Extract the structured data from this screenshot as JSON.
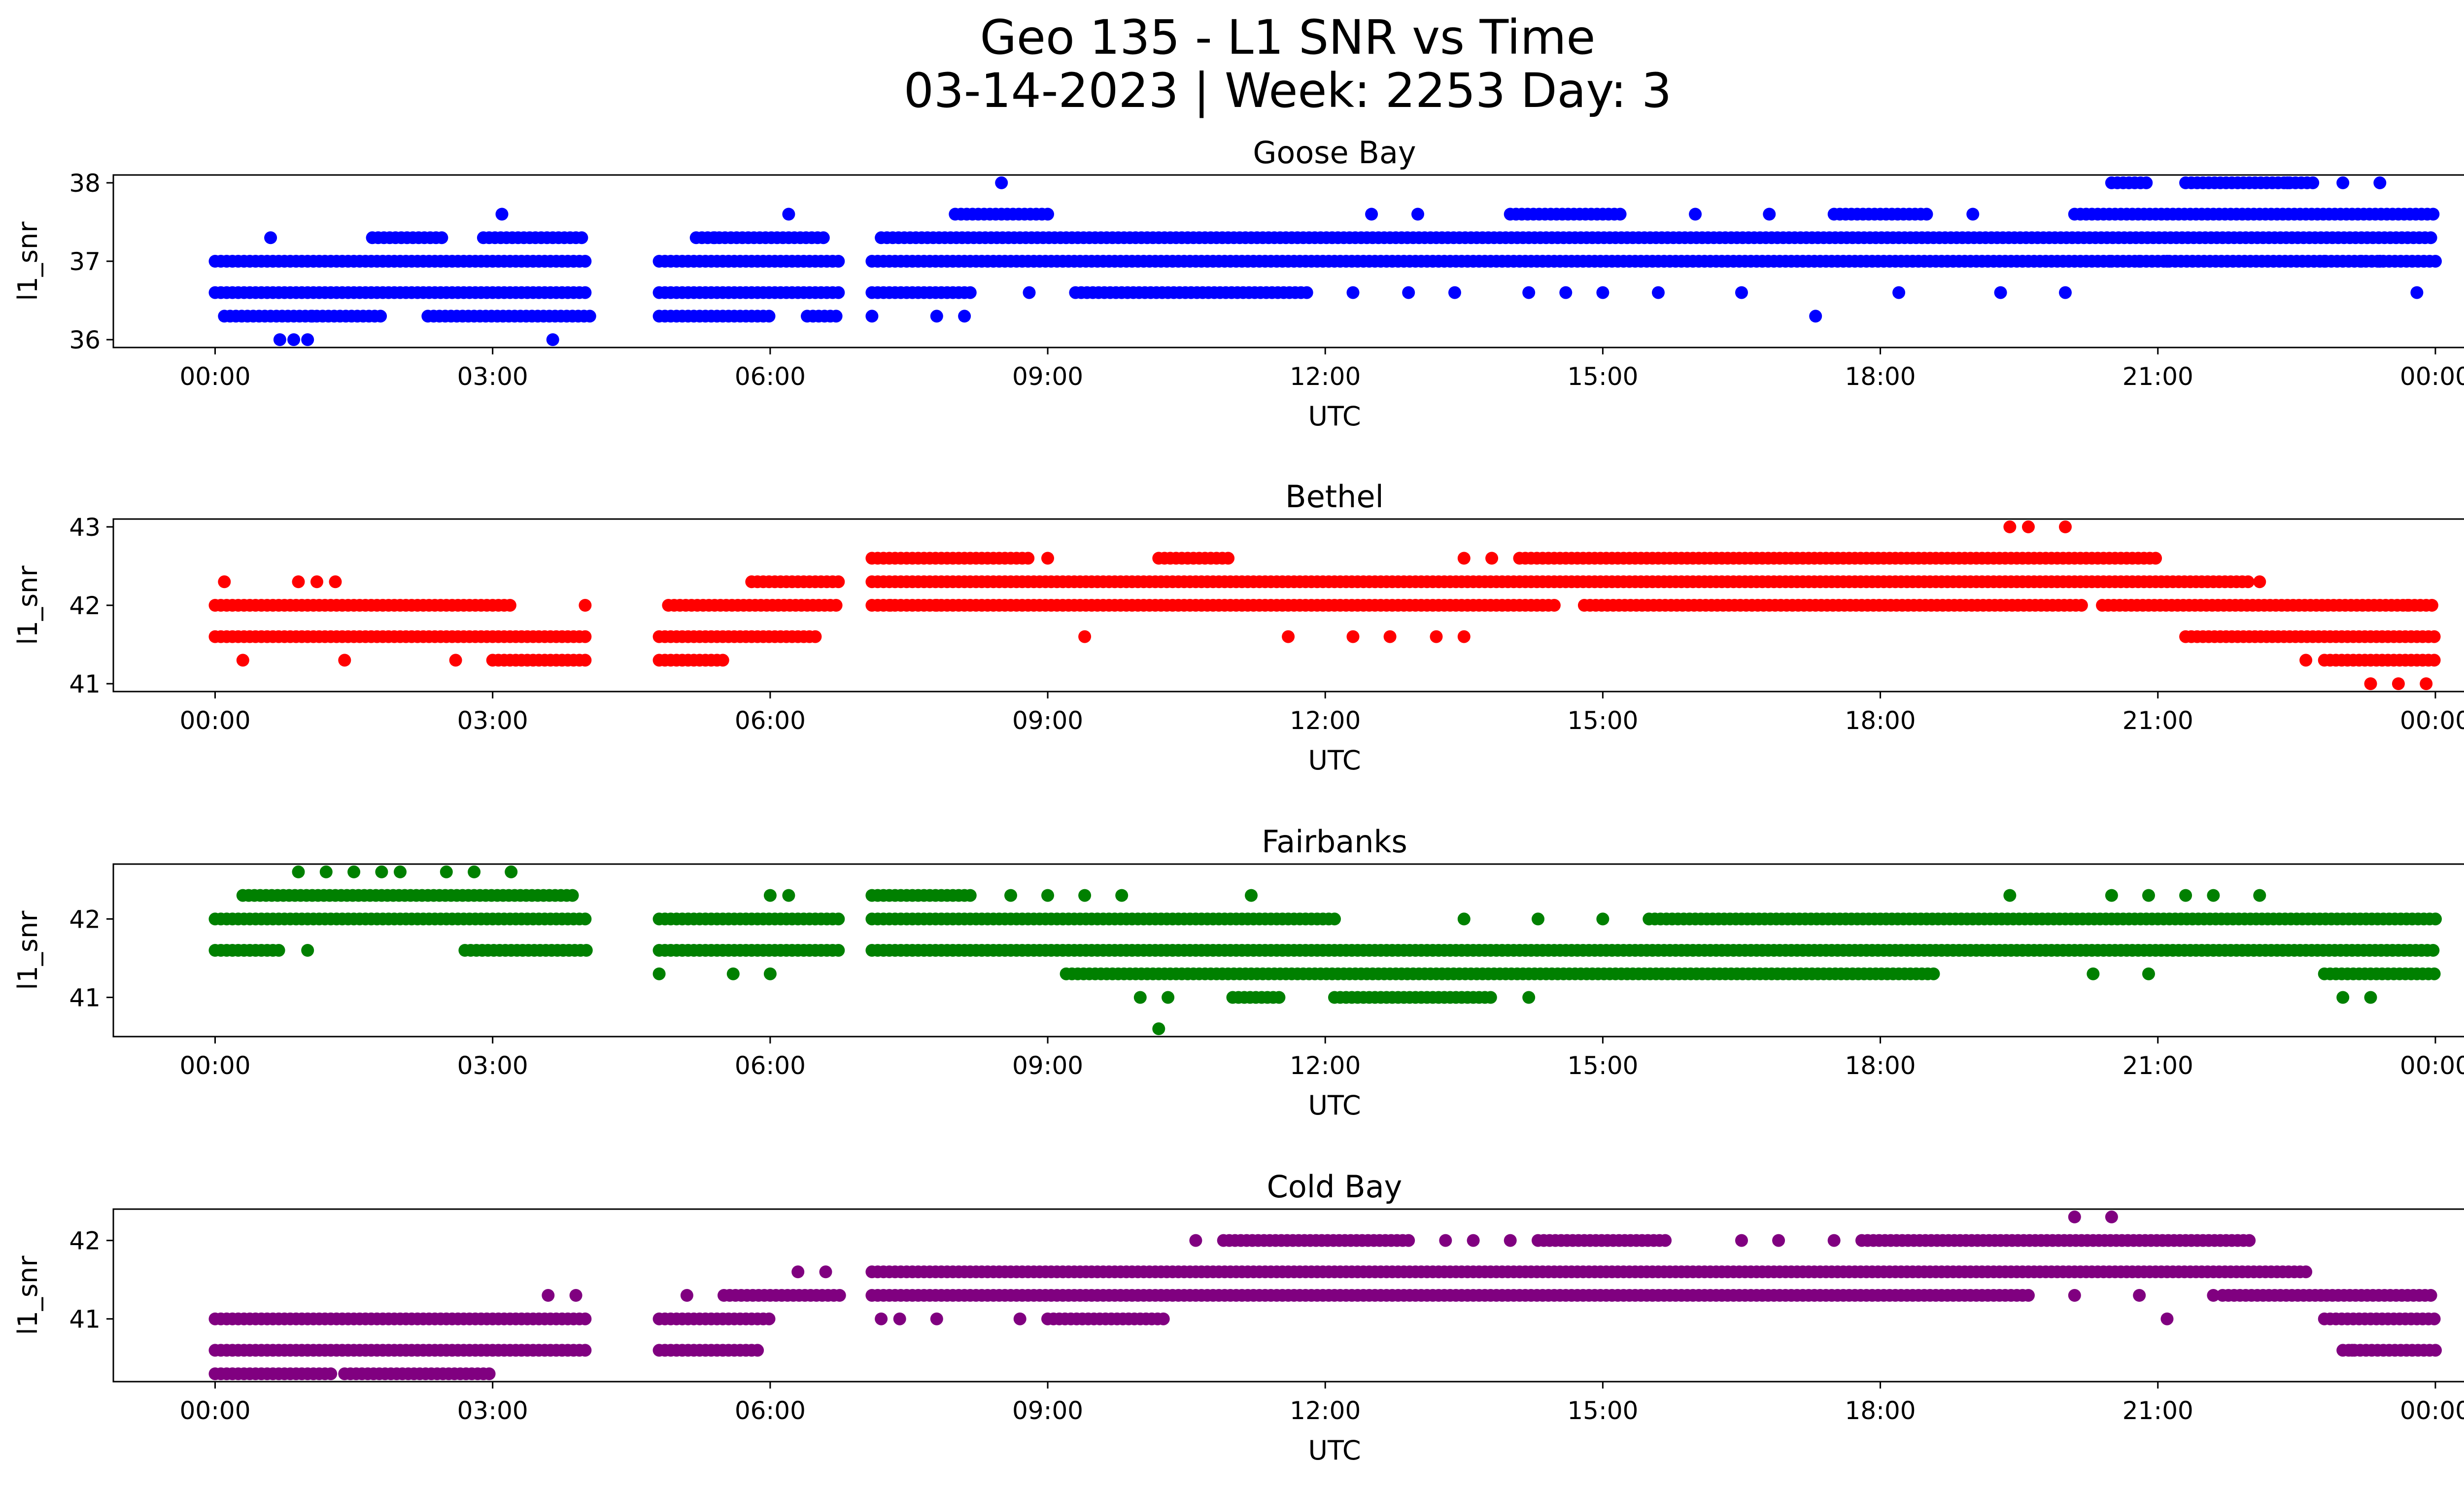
{
  "title_line1": "Geo 135 - L1 SNR vs Time",
  "title_line2": "03-14-2023 | Week: 2253 Day: 3",
  "chart_data": [
    {
      "type": "scatter",
      "title": "Goose Bay",
      "xlabel": "UTC",
      "ylabel": "l1_snr",
      "color": "#0000ff",
      "xlim": [
        -1.1,
        25.3
      ],
      "ylim": [
        35.9,
        38.1
      ],
      "yticks": [
        36,
        37,
        38
      ],
      "xticks": [
        0,
        3,
        6,
        9,
        12,
        15,
        18,
        21,
        24
      ],
      "xtick_labels": [
        "00:00",
        "03:00",
        "06:00",
        "09:00",
        "12:00",
        "15:00",
        "18:00",
        "21:00",
        "00:00"
      ],
      "bands": [
        {
          "y": 37.0,
          "ranges": [
            [
              0.0,
              4.05
            ],
            [
              4.8,
              6.75
            ],
            [
              7.1,
              20.5
            ],
            [
              20.5,
              24.0
            ]
          ]
        },
        {
          "y": 36.6,
          "ranges": [
            [
              0.0,
              4.05
            ],
            [
              4.8,
              6.75
            ],
            [
              7.1,
              8.2
            ],
            [
              9.3,
              11.8
            ]
          ]
        },
        {
          "y": 36.3,
          "ranges": [
            [
              0.1,
              1.8
            ],
            [
              2.3,
              4.05
            ],
            [
              4.8,
              6.0
            ],
            [
              6.4,
              6.75
            ]
          ]
        },
        {
          "y": 37.3,
          "ranges": [
            [
              1.7,
              2.5
            ],
            [
              2.9,
              4.0
            ],
            [
              5.2,
              6.6
            ],
            [
              7.2,
              24.0
            ]
          ]
        },
        {
          "y": 37.6,
          "ranges": [
            [
              8.0,
              9.0
            ],
            [
              14.0,
              15.2
            ],
            [
              17.5,
              18.5
            ],
            [
              20.1,
              24.0
            ]
          ]
        },
        {
          "y": 38.0,
          "ranges": [
            [
              20.5,
              20.9
            ],
            [
              21.3,
              22.7
            ]
          ]
        }
      ],
      "points": [
        {
          "x": 0.6,
          "y": 37.3
        },
        {
          "x": 0.7,
          "y": 36.0
        },
        {
          "x": 0.85,
          "y": 36.0
        },
        {
          "x": 1.0,
          "y": 36.0
        },
        {
          "x": 1.05,
          "y": 36.3
        },
        {
          "x": 3.1,
          "y": 37.6
        },
        {
          "x": 3.65,
          "y": 36.0
        },
        {
          "x": 5.4,
          "y": 37.3
        },
        {
          "x": 6.2,
          "y": 37.6
        },
        {
          "x": 7.1,
          "y": 36.3
        },
        {
          "x": 7.8,
          "y": 36.3
        },
        {
          "x": 8.1,
          "y": 36.3
        },
        {
          "x": 8.5,
          "y": 38.0
        },
        {
          "x": 8.8,
          "y": 36.6
        },
        {
          "x": 12.3,
          "y": 36.6
        },
        {
          "x": 12.9,
          "y": 36.6
        },
        {
          "x": 13.4,
          "y": 36.6
        },
        {
          "x": 14.2,
          "y": 36.6
        },
        {
          "x": 14.6,
          "y": 36.6
        },
        {
          "x": 15.0,
          "y": 36.6
        },
        {
          "x": 15.6,
          "y": 36.6
        },
        {
          "x": 16.5,
          "y": 36.6
        },
        {
          "x": 17.3,
          "y": 36.3
        },
        {
          "x": 18.2,
          "y": 36.6
        },
        {
          "x": 19.3,
          "y": 36.6
        },
        {
          "x": 20.0,
          "y": 36.6
        },
        {
          "x": 12.5,
          "y": 37.6
        },
        {
          "x": 13.0,
          "y": 37.6
        },
        {
          "x": 16.0,
          "y": 37.6
        },
        {
          "x": 16.8,
          "y": 37.6
        },
        {
          "x": 19.0,
          "y": 37.6
        },
        {
          "x": 20.8,
          "y": 37.0
        },
        {
          "x": 21.1,
          "y": 37.0
        },
        {
          "x": 22.8,
          "y": 37.0
        },
        {
          "x": 23.2,
          "y": 37.0
        },
        {
          "x": 23.4,
          "y": 37.0
        },
        {
          "x": 23.8,
          "y": 36.6
        },
        {
          "x": 22.4,
          "y": 38.0
        },
        {
          "x": 23.0,
          "y": 38.0
        },
        {
          "x": 23.4,
          "y": 38.0
        }
      ]
    },
    {
      "type": "scatter",
      "title": "Bethel",
      "xlabel": "UTC",
      "ylabel": "l1_snr",
      "color": "#ff0000",
      "xlim": [
        -1.1,
        25.3
      ],
      "ylim": [
        40.9,
        43.1
      ],
      "yticks": [
        41,
        42,
        43
      ],
      "xticks": [
        0,
        3,
        6,
        9,
        12,
        15,
        18,
        21,
        24
      ],
      "xtick_labels": [
        "00:00",
        "03:00",
        "06:00",
        "09:00",
        "12:00",
        "15:00",
        "18:00",
        "21:00",
        "00:00"
      ],
      "bands": [
        {
          "y": 42.0,
          "ranges": [
            [
              0.0,
              3.2
            ],
            [
              4.9,
              6.75
            ],
            [
              7.1,
              14.5
            ],
            [
              14.8,
              20.2
            ],
            [
              20.4,
              24.0
            ]
          ]
        },
        {
          "y": 41.6,
          "ranges": [
            [
              0.0,
              4.05
            ],
            [
              4.8,
              6.5
            ],
            [
              21.3,
              24.0
            ]
          ]
        },
        {
          "y": 41.3,
          "ranges": [
            [
              3.0,
              4.05
            ],
            [
              4.8,
              5.5
            ],
            [
              22.8,
              24.0
            ]
          ]
        },
        {
          "y": 42.3,
          "ranges": [
            [
              5.8,
              6.75
            ],
            [
              7.1,
              22.0
            ]
          ]
        },
        {
          "y": 42.6,
          "ranges": [
            [
              7.1,
              8.8
            ],
            [
              10.2,
              11.0
            ],
            [
              14.1,
              21.0
            ]
          ]
        }
      ],
      "points": [
        {
          "x": 0.1,
          "y": 42.3
        },
        {
          "x": 0.9,
          "y": 42.3
        },
        {
          "x": 1.1,
          "y": 42.3
        },
        {
          "x": 1.3,
          "y": 42.3
        },
        {
          "x": 0.3,
          "y": 41.3
        },
        {
          "x": 1.4,
          "y": 41.3
        },
        {
          "x": 2.6,
          "y": 41.3
        },
        {
          "x": 4.0,
          "y": 42.0
        },
        {
          "x": 7.3,
          "y": 42.0
        },
        {
          "x": 7.8,
          "y": 42.0
        },
        {
          "x": 9.0,
          "y": 42.6
        },
        {
          "x": 9.4,
          "y": 41.6
        },
        {
          "x": 11.6,
          "y": 41.6
        },
        {
          "x": 12.3,
          "y": 41.6
        },
        {
          "x": 13.2,
          "y": 41.6
        },
        {
          "x": 13.5,
          "y": 41.6
        },
        {
          "x": 12.7,
          "y": 41.6
        },
        {
          "x": 13.5,
          "y": 42.6
        },
        {
          "x": 13.8,
          "y": 42.6
        },
        {
          "x": 19.4,
          "y": 43.0
        },
        {
          "x": 19.6,
          "y": 43.0
        },
        {
          "x": 20.0,
          "y": 43.0
        },
        {
          "x": 22.6,
          "y": 41.3
        },
        {
          "x": 23.3,
          "y": 41.0
        },
        {
          "x": 23.6,
          "y": 41.0
        },
        {
          "x": 23.9,
          "y": 41.0
        },
        {
          "x": 23.7,
          "y": 42.0
        },
        {
          "x": 22.1,
          "y": 42.3
        }
      ]
    },
    {
      "type": "scatter",
      "title": "Fairbanks",
      "xlabel": "UTC",
      "ylabel": "l1_snr",
      "color": "#008000",
      "xlim": [
        -1.1,
        25.3
      ],
      "ylim": [
        40.5,
        42.7
      ],
      "yticks": [
        41,
        42
      ],
      "xticks": [
        0,
        3,
        6,
        9,
        12,
        15,
        18,
        21,
        24
      ],
      "xtick_labels": [
        "00:00",
        "03:00",
        "06:00",
        "09:00",
        "12:00",
        "15:00",
        "18:00",
        "21:00",
        "00:00"
      ],
      "bands": [
        {
          "y": 42.0,
          "ranges": [
            [
              0.0,
              4.05
            ],
            [
              4.8,
              6.75
            ],
            [
              7.1,
              12.1
            ],
            [
              15.5,
              24.0
            ]
          ]
        },
        {
          "y": 41.6,
          "ranges": [
            [
              0.0,
              0.7
            ],
            [
              2.7,
              4.05
            ],
            [
              4.8,
              6.75
            ],
            [
              7.1,
              24.0
            ]
          ]
        },
        {
          "y": 42.3,
          "ranges": [
            [
              0.3,
              3.9
            ],
            [
              7.1,
              8.2
            ]
          ]
        },
        {
          "y": 41.3,
          "ranges": [
            [
              9.2,
              18.6
            ],
            [
              22.8,
              24.0
            ]
          ]
        },
        {
          "y": 41.0,
          "ranges": [
            [
              11.0,
              11.5
            ],
            [
              12.1,
              13.8
            ]
          ]
        }
      ],
      "points": [
        {
          "x": 0.9,
          "y": 42.6
        },
        {
          "x": 1.2,
          "y": 42.6
        },
        {
          "x": 1.5,
          "y": 42.6
        },
        {
          "x": 1.8,
          "y": 42.6
        },
        {
          "x": 2.0,
          "y": 42.6
        },
        {
          "x": 2.5,
          "y": 42.6
        },
        {
          "x": 2.8,
          "y": 42.6
        },
        {
          "x": 3.2,
          "y": 42.6
        },
        {
          "x": 1.0,
          "y": 41.6
        },
        {
          "x": 4.8,
          "y": 41.3
        },
        {
          "x": 5.6,
          "y": 41.3
        },
        {
          "x": 6.0,
          "y": 41.3
        },
        {
          "x": 6.0,
          "y": 42.3
        },
        {
          "x": 6.2,
          "y": 42.3
        },
        {
          "x": 8.6,
          "y": 42.3
        },
        {
          "x": 9.0,
          "y": 42.3
        },
        {
          "x": 9.4,
          "y": 42.3
        },
        {
          "x": 9.8,
          "y": 42.3
        },
        {
          "x": 11.2,
          "y": 42.3
        },
        {
          "x": 10.0,
          "y": 41.0
        },
        {
          "x": 10.3,
          "y": 41.0
        },
        {
          "x": 10.2,
          "y": 40.6
        },
        {
          "x": 14.2,
          "y": 41.0
        },
        {
          "x": 13.5,
          "y": 42.0
        },
        {
          "x": 14.3,
          "y": 42.0
        },
        {
          "x": 15.0,
          "y": 42.0
        },
        {
          "x": 19.4,
          "y": 42.3
        },
        {
          "x": 20.5,
          "y": 42.3
        },
        {
          "x": 20.9,
          "y": 42.3
        },
        {
          "x": 21.3,
          "y": 42.3
        },
        {
          "x": 21.6,
          "y": 42.3
        },
        {
          "x": 22.1,
          "y": 42.3
        },
        {
          "x": 20.3,
          "y": 41.3
        },
        {
          "x": 20.9,
          "y": 41.3
        },
        {
          "x": 23.0,
          "y": 41.0
        },
        {
          "x": 23.3,
          "y": 41.0
        }
      ]
    },
    {
      "type": "scatter",
      "title": "Cold Bay",
      "xlabel": "UTC",
      "ylabel": "l1_snr",
      "color": "#800080",
      "xlim": [
        -1.1,
        25.3
      ],
      "ylim": [
        40.2,
        42.4
      ],
      "yticks": [
        41,
        42
      ],
      "xticks": [
        0,
        3,
        6,
        9,
        12,
        15,
        18,
        21,
        24
      ],
      "xtick_labels": [
        "00:00",
        "03:00",
        "06:00",
        "09:00",
        "12:00",
        "15:00",
        "18:00",
        "21:00",
        "00:00"
      ],
      "bands": [
        {
          "y": 41.0,
          "ranges": [
            [
              0.0,
              4.05
            ],
            [
              4.8,
              6.0
            ],
            [
              9.0,
              10.3
            ],
            [
              22.8,
              24.0
            ]
          ]
        },
        {
          "y": 40.6,
          "ranges": [
            [
              0.0,
              4.05
            ],
            [
              4.8,
              5.9
            ],
            [
              23.0,
              24.0
            ]
          ]
        },
        {
          "y": 40.3,
          "ranges": [
            [
              0.0,
              1.3
            ],
            [
              1.4,
              3.0
            ]
          ]
        },
        {
          "y": 41.3,
          "ranges": [
            [
              5.5,
              6.75
            ],
            [
              7.1,
              19.6
            ],
            [
              21.7,
              24.0
            ]
          ]
        },
        {
          "y": 41.6,
          "ranges": [
            [
              7.1,
              22.6
            ]
          ]
        },
        {
          "y": 42.0,
          "ranges": [
            [
              10.9,
              12.9
            ],
            [
              14.3,
              15.7
            ],
            [
              17.8,
              22.0
            ]
          ]
        }
      ],
      "points": [
        {
          "x": 3.6,
          "y": 41.3
        },
        {
          "x": 3.9,
          "y": 41.3
        },
        {
          "x": 5.1,
          "y": 41.3
        },
        {
          "x": 6.3,
          "y": 41.6
        },
        {
          "x": 6.6,
          "y": 41.6
        },
        {
          "x": 7.2,
          "y": 41.0
        },
        {
          "x": 7.4,
          "y": 41.0
        },
        {
          "x": 7.8,
          "y": 41.0
        },
        {
          "x": 8.7,
          "y": 41.0
        },
        {
          "x": 10.6,
          "y": 42.0
        },
        {
          "x": 13.3,
          "y": 42.0
        },
        {
          "x": 13.6,
          "y": 42.0
        },
        {
          "x": 14.0,
          "y": 42.0
        },
        {
          "x": 16.5,
          "y": 42.0
        },
        {
          "x": 16.9,
          "y": 42.0
        },
        {
          "x": 17.5,
          "y": 42.0
        },
        {
          "x": 20.1,
          "y": 42.3
        },
        {
          "x": 20.5,
          "y": 42.3
        },
        {
          "x": 20.1,
          "y": 41.3
        },
        {
          "x": 20.8,
          "y": 41.3
        },
        {
          "x": 21.1,
          "y": 41.0
        },
        {
          "x": 21.6,
          "y": 41.3
        },
        {
          "x": 23.1,
          "y": 40.6
        }
      ]
    }
  ]
}
